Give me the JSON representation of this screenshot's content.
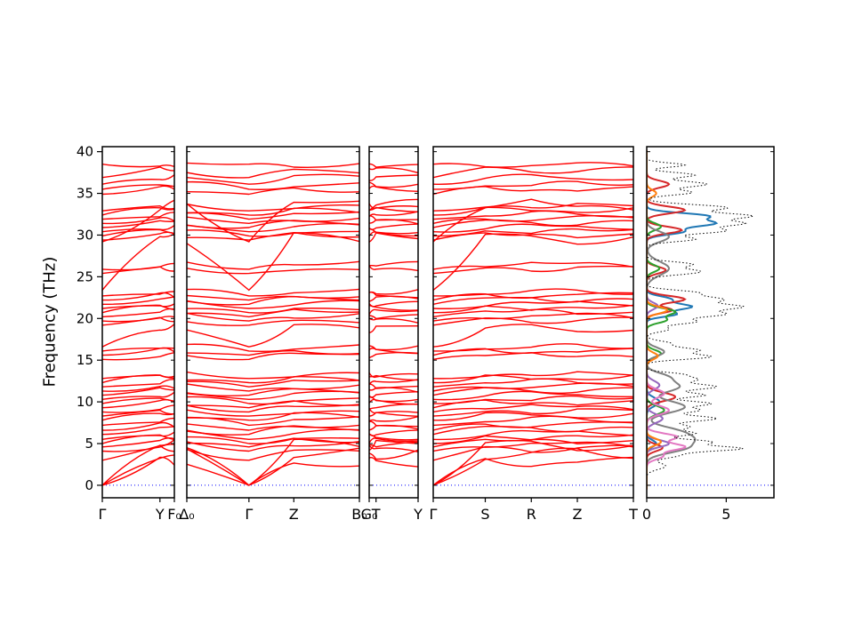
{
  "chart_data": {
    "type": "line",
    "title": "",
    "ylabel": "Frequency (THz)",
    "ylim": [
      0,
      40
    ],
    "yticks": [
      0,
      5,
      10,
      15,
      20,
      25,
      30,
      35,
      40
    ],
    "band_color": "#ff0000",
    "zero_line_color": "#0000ff",
    "frame_color": "#000000",
    "tick_label_color": "#000000",
    "legend": "none",
    "grid": false,
    "panels": [
      {
        "kind": "bands",
        "labels": [
          "Γ",
          "Y",
          "F₀"
        ],
        "positions": [
          0,
          0.8,
          1
        ],
        "gammaness": [
          1,
          0,
          0
        ]
      },
      {
        "kind": "bands",
        "labels": [
          "Δ₀",
          "Γ",
          "Z",
          "B₀"
        ],
        "positions": [
          0,
          0.36,
          0.62,
          1
        ],
        "gammaness": [
          0,
          1,
          0,
          0
        ]
      },
      {
        "kind": "bands",
        "labels": [
          "G₀",
          "T",
          "Y"
        ],
        "positions": [
          0,
          0.14,
          1
        ],
        "gammaness": [
          0,
          0,
          0
        ]
      },
      {
        "kind": "bands",
        "labels": [
          "Γ",
          "S",
          "R",
          "Z",
          "T"
        ],
        "positions": [
          0,
          0.26,
          0.49,
          0.72,
          1
        ],
        "gammaness": [
          1,
          0,
          0,
          0,
          0
        ]
      },
      {
        "kind": "dos",
        "xticks": [
          0,
          5
        ],
        "xtick_labels": [
          "0",
          "5"
        ],
        "xlim": [
          0,
          8
        ]
      }
    ],
    "bands_gamma_edge": [
      [
        0,
        2.8
      ],
      [
        0,
        3.8
      ],
      [
        0,
        4.8
      ],
      [
        3.0,
        4.4
      ],
      [
        4.1,
        4.9
      ],
      [
        4.6,
        5.3
      ],
      [
        5.0,
        5.8
      ],
      [
        5.5,
        6.3
      ],
      [
        6.1,
        6.8
      ],
      [
        6.6,
        7.3
      ],
      [
        7.2,
        7.9
      ],
      [
        7.8,
        8.4
      ],
      [
        8.3,
        8.9
      ],
      [
        8.8,
        9.4
      ],
      [
        9.3,
        9.9
      ],
      [
        9.8,
        10.4
      ],
      [
        10.3,
        10.9
      ],
      [
        10.8,
        11.4
      ],
      [
        11.3,
        11.9
      ],
      [
        11.8,
        12.4
      ],
      [
        12.3,
        12.9
      ],
      [
        12.8,
        13.3
      ],
      [
        15.1,
        15.6
      ],
      [
        15.6,
        16.1
      ],
      [
        16.1,
        16.6
      ],
      [
        16.6,
        18.8
      ],
      [
        19.2,
        19.8
      ],
      [
        19.7,
        20.3
      ],
      [
        20.2,
        20.8
      ],
      [
        20.7,
        21.3
      ],
      [
        21.2,
        21.8
      ],
      [
        21.7,
        22.3
      ],
      [
        22.2,
        22.8
      ],
      [
        22.7,
        23.2
      ],
      [
        23.4,
        29.6
      ],
      [
        25.4,
        26.0
      ],
      [
        25.9,
        26.5
      ],
      [
        29.4,
        30.0
      ],
      [
        29.9,
        30.5
      ],
      [
        30.4,
        31.0
      ],
      [
        30.9,
        31.5
      ],
      [
        31.4,
        32.0
      ],
      [
        31.9,
        32.5
      ],
      [
        32.4,
        33.0
      ],
      [
        32.9,
        33.5
      ],
      [
        29.2,
        33.6
      ],
      [
        34.9,
        35.5
      ],
      [
        35.5,
        36.1
      ],
      [
        36.1,
        36.9
      ],
      [
        36.9,
        37.8
      ],
      [
        38.5,
        38.4
      ]
    ],
    "dos": {
      "total": {
        "name": "total-dos",
        "color": "#000000",
        "style": "dotted",
        "peaks": [
          [
            2.3,
            1.2,
            0.4
          ],
          [
            3.6,
            2.0,
            0.35
          ],
          [
            4.4,
            5.8,
            0.3
          ],
          [
            5.2,
            4.0,
            0.3
          ],
          [
            6.2,
            3.0,
            0.3
          ],
          [
            7.0,
            2.6,
            0.3
          ],
          [
            8.0,
            4.4,
            0.35
          ],
          [
            9.0,
            3.2,
            0.3
          ],
          [
            9.8,
            4.0,
            0.3
          ],
          [
            10.8,
            3.6,
            0.3
          ],
          [
            11.8,
            4.4,
            0.35
          ],
          [
            12.7,
            3.0,
            0.3
          ],
          [
            13.3,
            2.0,
            0.25
          ],
          [
            15.4,
            4.0,
            0.3
          ],
          [
            16.2,
            3.2,
            0.3
          ],
          [
            17.0,
            1.5,
            0.3
          ],
          [
            18.7,
            1.4,
            0.3
          ],
          [
            19.6,
            3.0,
            0.3
          ],
          [
            20.5,
            4.8,
            0.35
          ],
          [
            21.4,
            5.8,
            0.35
          ],
          [
            22.3,
            4.6,
            0.35
          ],
          [
            23.1,
            3.0,
            0.3
          ],
          [
            25.6,
            3.4,
            0.35
          ],
          [
            26.5,
            2.8,
            0.3
          ],
          [
            29.5,
            3.0,
            0.3
          ],
          [
            30.5,
            4.8,
            0.35
          ],
          [
            31.4,
            5.8,
            0.35
          ],
          [
            32.3,
            6.4,
            0.35
          ],
          [
            33.3,
            5.0,
            0.35
          ],
          [
            35.1,
            2.8,
            0.3
          ],
          [
            36.1,
            3.8,
            0.35
          ],
          [
            37.2,
            3.0,
            0.3
          ],
          [
            38.4,
            2.4,
            0.25
          ]
        ]
      },
      "partials": [
        {
          "name": "partial-dos-blue",
          "color": "#1f77b4",
          "peaks": [
            [
              31.4,
              4.2,
              0.4
            ],
            [
              32.3,
              3.6,
              0.35
            ],
            [
              30.4,
              2.2,
              0.35
            ],
            [
              21.4,
              2.8,
              0.35
            ],
            [
              20.5,
              1.8,
              0.3
            ],
            [
              22.3,
              1.5,
              0.35
            ],
            [
              10.0,
              0.8,
              0.5
            ],
            [
              5.0,
              0.6,
              0.4
            ]
          ]
        },
        {
          "name": "partial-dos-red",
          "color": "#d62728",
          "peaks": [
            [
              22.3,
              2.4,
              0.4
            ],
            [
              21.0,
              1.6,
              0.35
            ],
            [
              30.6,
              2.2,
              0.4
            ],
            [
              33.0,
              2.4,
              0.4
            ],
            [
              36.1,
              1.4,
              0.4
            ],
            [
              10.6,
              1.8,
              0.5
            ],
            [
              4.5,
              1.0,
              0.4
            ],
            [
              25.8,
              1.2,
              0.4
            ]
          ]
        },
        {
          "name": "partial-dos-green",
          "color": "#2ca02c",
          "peaks": [
            [
              20.8,
              1.8,
              0.4
            ],
            [
              19.8,
              1.2,
              0.35
            ],
            [
              9.0,
              1.1,
              0.5
            ],
            [
              15.8,
              0.9,
              0.4
            ],
            [
              26.0,
              0.8,
              0.4
            ],
            [
              31.0,
              0.9,
              0.4
            ]
          ]
        },
        {
          "name": "partial-dos-gray",
          "color": "#7f7f7f",
          "peaks": [
            [
              4.5,
              2.4,
              0.6
            ],
            [
              6.4,
              2.0,
              0.6
            ],
            [
              9.4,
              2.4,
              0.7
            ],
            [
              11.8,
              2.0,
              0.6
            ],
            [
              13.0,
              1.2,
              0.5
            ],
            [
              16.0,
              1.1,
              0.5
            ],
            [
              26.0,
              1.4,
              0.8
            ],
            [
              29.8,
              1.4,
              0.6
            ],
            [
              5.5,
              1.8,
              0.5
            ]
          ]
        },
        {
          "name": "partial-dos-violet",
          "color": "#9467bd",
          "peaks": [
            [
              5.0,
              1.4,
              0.4
            ],
            [
              8.0,
              1.0,
              0.5
            ],
            [
              12.0,
              0.8,
              0.5
            ],
            [
              21.5,
              0.7,
              0.4
            ]
          ]
        },
        {
          "name": "partial-dos-pink",
          "color": "#e377c2",
          "peaks": [
            [
              4.6,
              2.4,
              0.4
            ],
            [
              5.8,
              1.9,
              0.4
            ],
            [
              9.0,
              1.4,
              0.5
            ],
            [
              11.0,
              1.1,
              0.5
            ],
            [
              3.5,
              1.0,
              0.4
            ]
          ]
        },
        {
          "name": "partial-dos-orange",
          "color": "#ff7f0e",
          "peaks": [
            [
              21.0,
              1.3,
              0.4
            ],
            [
              5.2,
              0.9,
              0.4
            ],
            [
              15.5,
              0.7,
              0.4
            ],
            [
              35.0,
              0.6,
              0.4
            ]
          ]
        }
      ]
    }
  }
}
